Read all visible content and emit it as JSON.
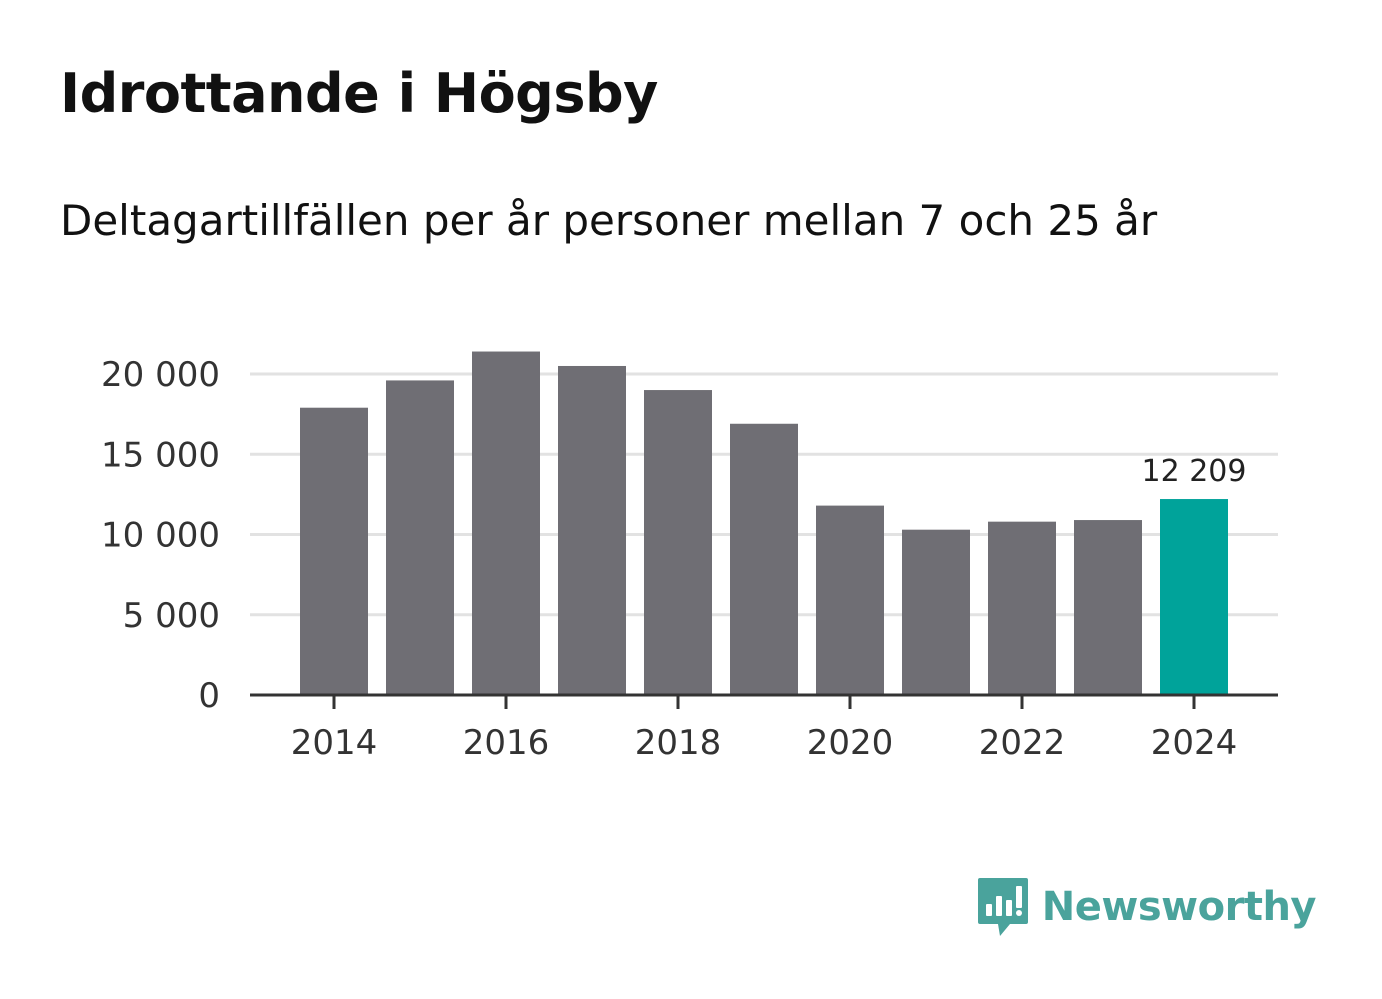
{
  "chart_data": {
    "type": "bar",
    "title": "Idrottande i Högsby",
    "subtitle": "Deltagartillfällen per år personer mellan 7 och 25 år",
    "categories": [
      "2014",
      "2015",
      "2016",
      "2017",
      "2018",
      "2019",
      "2020",
      "2021",
      "2022",
      "2023",
      "2024"
    ],
    "values": [
      17900,
      19600,
      21400,
      20500,
      19000,
      16900,
      11800,
      10300,
      10800,
      10900,
      12209
    ],
    "x_tick_labels": [
      "2014",
      "2016",
      "2018",
      "2020",
      "2022",
      "2024"
    ],
    "y_tick_values": [
      0,
      5000,
      10000,
      15000,
      20000
    ],
    "y_tick_labels": [
      "0",
      "5 000",
      "10 000",
      "15 000",
      "20 000"
    ],
    "ylim": [
      0,
      22000
    ],
    "grid": true,
    "highlight_index": 10,
    "highlight_label": "12 209",
    "colors": {
      "bar": "#6f6e74",
      "highlight": "#00a39a",
      "grid": "#e2e2e2",
      "axis": "#333333"
    },
    "xlabel": "",
    "ylabel": ""
  },
  "brand": {
    "name": "Newsworthy",
    "icon": "newsworthy-logo-icon",
    "color": "#4aa39c"
  }
}
